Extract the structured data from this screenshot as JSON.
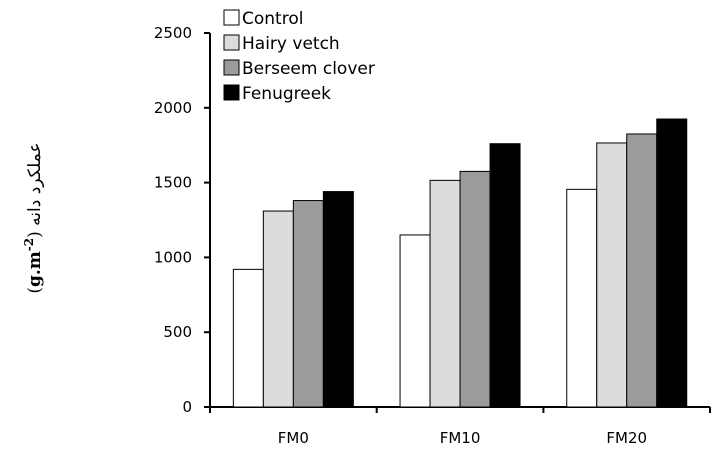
{
  "chart_data": {
    "type": "bar",
    "title": "",
    "xlabel": "",
    "ylabel": "عملکرد دانه (g.m-2)",
    "ylabel_parts": {
      "persian": "عملکرد دانه",
      "open": "(",
      "unit": "g.m",
      "exponent": "-2",
      "close": ")"
    },
    "categories": [
      "FM0",
      "FM10",
      "FM20"
    ],
    "ylim": [
      0,
      2500
    ],
    "yticks": [
      0,
      500,
      1000,
      1500,
      2000,
      2500
    ],
    "series": [
      {
        "name": "Control",
        "color": "#ffffff",
        "values": [
          920,
          1150,
          1455
        ]
      },
      {
        "name": "Hairy vetch",
        "color": "#dcdcdc",
        "values": [
          1310,
          1515,
          1765
        ]
      },
      {
        "name": "Berseem clover",
        "color": "#9b9b9b",
        "values": [
          1380,
          1575,
          1825
        ]
      },
      {
        "name": "Fenugreek",
        "color": "#000000",
        "values": [
          1440,
          1760,
          1925
        ]
      }
    ],
    "legend_position": "top-left",
    "grid": false
  }
}
